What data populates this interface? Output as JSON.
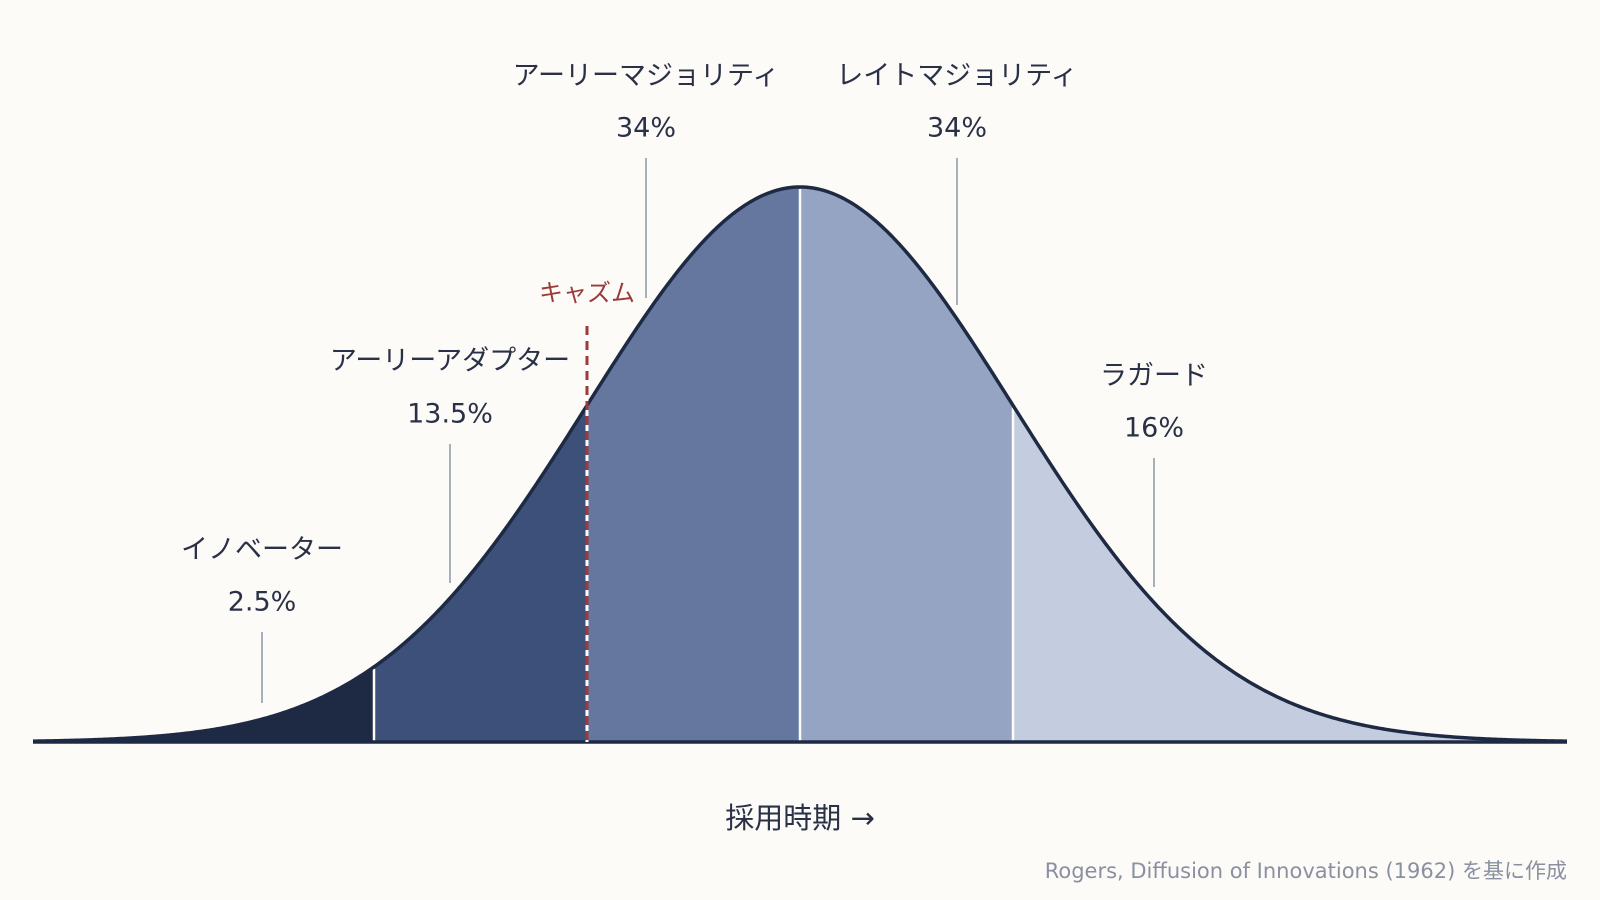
{
  "segments": [
    {
      "label": "イノベーター",
      "share": "2.5%"
    },
    {
      "label": "アーリーアダプター",
      "share": "13.5%"
    },
    {
      "label": "アーリーマジョリティ",
      "share": "34%"
    },
    {
      "label": "レイトマジョリティ",
      "share": "34%"
    },
    {
      "label": "ラガード",
      "share": "16%"
    }
  ],
  "chasm": "キャズム",
  "axis_label": "採用時期 →",
  "source": "Rogers, Diffusion of Innovations (1962) を基に作成"
}
